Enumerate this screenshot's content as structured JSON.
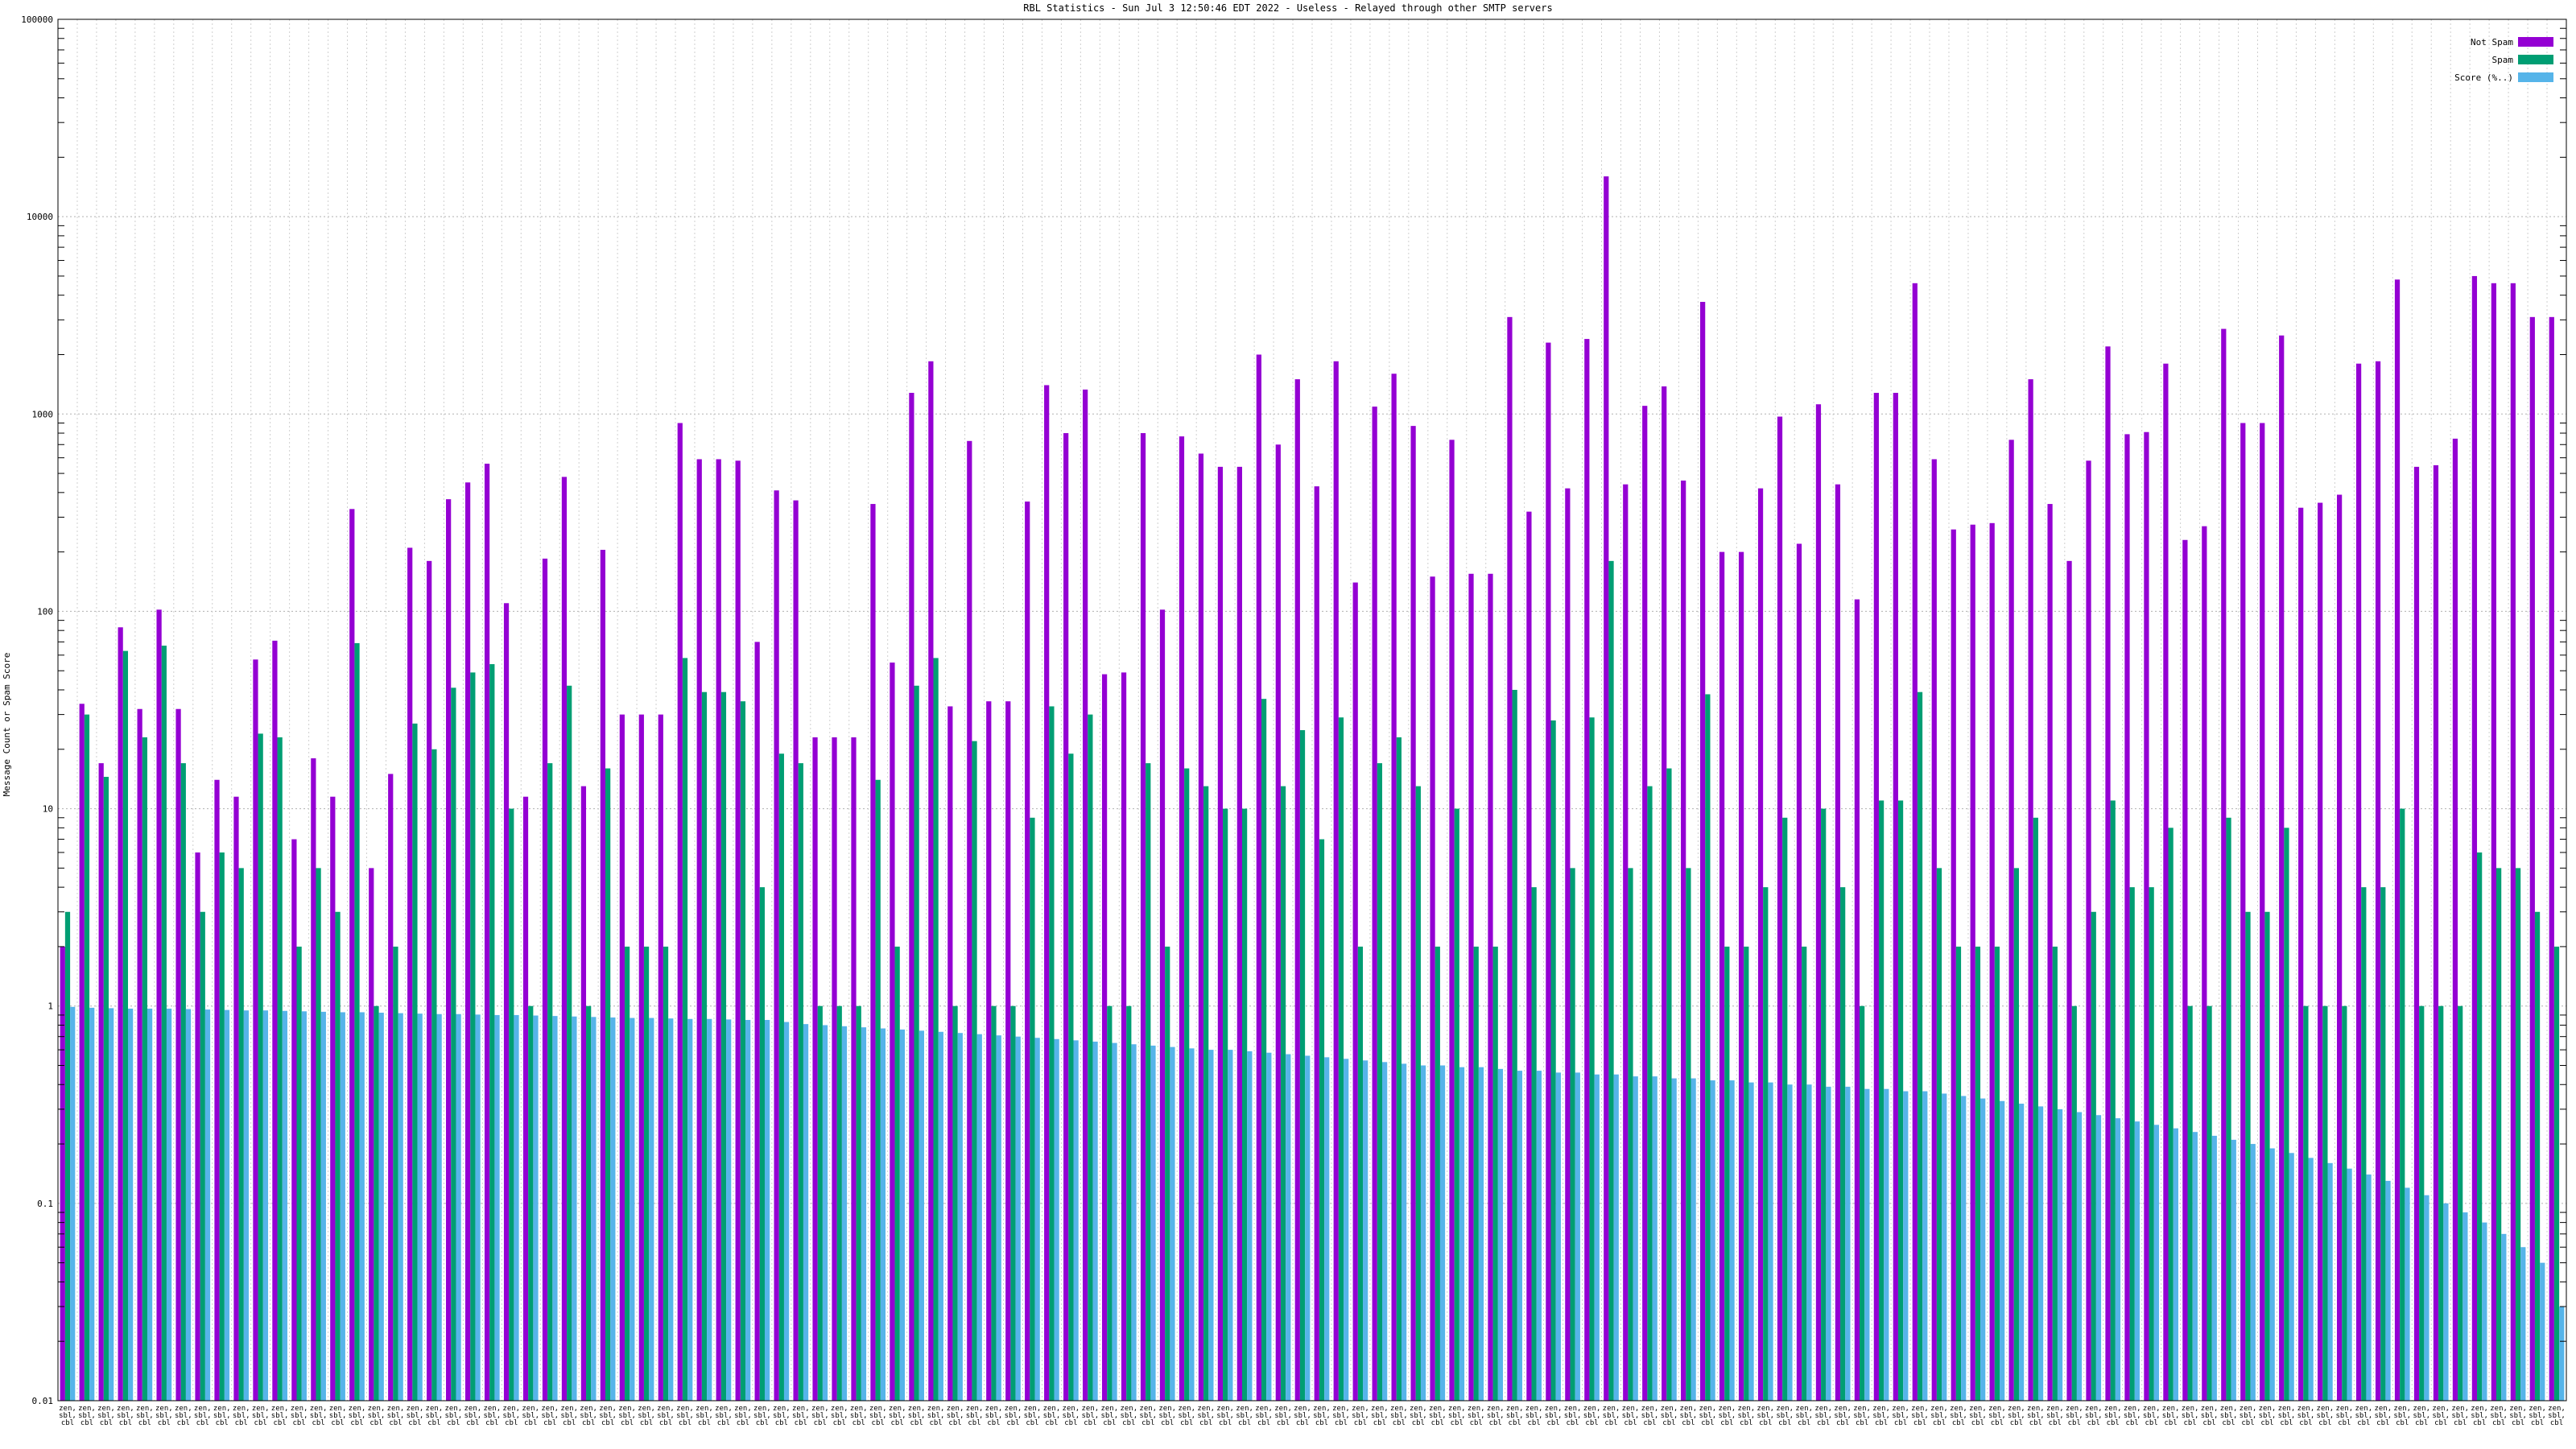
{
  "chart_data": {
    "type": "bar",
    "title": "RBL Statistics - Sun Jul  3 12:50:46 EDT 2022 - Useless - Relayed through other SMTP servers",
    "ylabel": "Message Count or Spam Score",
    "yscale": "log",
    "ylim": [
      0.01,
      100000
    ],
    "y_ticks": [
      {
        "value": 0.01,
        "label": "0.01"
      },
      {
        "value": 0.1,
        "label": "0.1"
      },
      {
        "value": 1,
        "label": "1"
      },
      {
        "value": 10,
        "label": "10"
      },
      {
        "value": 100,
        "label": "100"
      },
      {
        "value": 1000,
        "label": "1000"
      },
      {
        "value": 10000,
        "label": "10000"
      },
      {
        "value": 100000,
        "label": "100000"
      }
    ],
    "grid": true,
    "legend_position": "top-right",
    "colors": {
      "not_spam": "#9400d3",
      "spam": "#009e73",
      "score": "#56b4e9"
    },
    "series": [
      {
        "name": "Not Spam",
        "values": [
          2,
          34,
          17,
          83,
          32,
          102,
          32,
          6,
          14,
          11.5,
          57,
          71,
          7,
          18,
          11.5,
          330,
          5,
          15,
          210,
          180,
          370,
          450,
          560,
          110,
          11.5,
          185,
          480,
          13,
          205,
          30,
          30,
          30,
          900,
          590,
          590,
          580,
          70,
          410,
          365,
          23,
          23,
          23,
          350,
          55,
          1280,
          1850,
          33,
          730,
          35,
          35,
          360,
          1400,
          800,
          1330,
          48,
          49,
          800,
          102,
          770,
          630,
          540,
          540,
          2000,
          700,
          1500,
          430,
          1850,
          140,
          1090,
          1600,
          870,
          150,
          740,
          155,
          155,
          3100,
          320,
          2300,
          420,
          2400,
          16000,
          440,
          1100,
          1380,
          460,
          3700,
          200,
          200,
          420,
          970,
          220,
          1120,
          440,
          115,
          1280,
          1280,
          4600,
          590,
          260,
          275,
          280,
          740,
          1500,
          350,
          180,
          580,
          2200,
          790,
          810,
          1800,
          230,
          270,
          2700,
          900,
          900,
          2500,
          335,
          355,
          390,
          1800,
          1850,
          4800,
          540,
          550,
          750,
          5000,
          4600,
          4600,
          3100,
          3100
        ]
      },
      {
        "name": "Spam",
        "values": [
          3,
          30,
          14.5,
          63,
          23,
          67,
          17,
          3,
          6,
          5,
          24,
          23,
          2,
          5,
          3,
          69,
          1,
          2,
          27,
          20,
          41,
          49,
          54,
          10,
          1,
          17,
          42,
          1,
          16,
          2,
          2,
          2,
          58,
          39,
          39,
          35,
          4,
          19,
          17,
          1,
          1,
          1,
          14,
          2,
          42,
          58,
          1,
          22,
          1,
          1,
          9,
          33,
          19,
          30,
          1,
          1,
          17,
          2,
          16,
          13,
          10,
          10,
          36,
          13,
          25,
          7,
          29,
          2,
          17,
          23,
          13,
          2,
          10,
          2,
          2,
          40,
          4,
          28,
          5,
          29,
          180,
          5,
          13,
          16,
          5,
          38,
          2,
          2,
          4,
          9,
          2,
          10,
          4,
          1,
          11,
          11,
          39,
          5,
          2,
          2,
          2,
          5,
          9,
          2,
          1,
          3,
          11,
          4,
          4,
          8,
          1,
          1,
          9,
          3,
          3,
          8,
          1,
          1,
          1,
          4,
          4,
          10,
          1,
          1,
          1,
          6,
          5,
          5,
          3,
          2
        ]
      },
      {
        "name": "Score (%..)",
        "values": [
          0.99,
          0.98,
          0.975,
          0.97,
          0.97,
          0.97,
          0.965,
          0.96,
          0.955,
          0.95,
          0.95,
          0.945,
          0.94,
          0.935,
          0.93,
          0.93,
          0.925,
          0.92,
          0.915,
          0.91,
          0.91,
          0.905,
          0.9,
          0.9,
          0.895,
          0.89,
          0.885,
          0.88,
          0.875,
          0.87,
          0.87,
          0.865,
          0.86,
          0.86,
          0.855,
          0.85,
          0.85,
          0.83,
          0.81,
          0.8,
          0.79,
          0.78,
          0.77,
          0.76,
          0.75,
          0.74,
          0.73,
          0.72,
          0.71,
          0.7,
          0.69,
          0.68,
          0.67,
          0.66,
          0.65,
          0.64,
          0.63,
          0.62,
          0.61,
          0.6,
          0.6,
          0.59,
          0.58,
          0.57,
          0.56,
          0.55,
          0.54,
          0.53,
          0.52,
          0.51,
          0.5,
          0.5,
          0.49,
          0.49,
          0.48,
          0.47,
          0.47,
          0.46,
          0.46,
          0.45,
          0.45,
          0.44,
          0.44,
          0.43,
          0.43,
          0.42,
          0.42,
          0.41,
          0.41,
          0.4,
          0.4,
          0.39,
          0.39,
          0.38,
          0.38,
          0.37,
          0.37,
          0.36,
          0.35,
          0.34,
          0.33,
          0.32,
          0.31,
          0.3,
          0.29,
          0.28,
          0.27,
          0.26,
          0.25,
          0.24,
          0.23,
          0.22,
          0.21,
          0.2,
          0.19,
          0.18,
          0.17,
          0.16,
          0.15,
          0.14,
          0.13,
          0.12,
          0.11,
          0.1,
          0.09,
          0.08,
          0.07,
          0.06,
          0.05,
          0.03
        ]
      }
    ],
    "categories": [
      [
        "zen,",
        "sbl,",
        "cbl"
      ],
      [
        "zen,",
        "sbl,",
        "cbl"
      ],
      [
        "zen,",
        "sbl,",
        "cbl"
      ],
      [
        "zen,",
        "sbl,",
        "cbl"
      ],
      [
        "zen,",
        "sbl,",
        "cbl"
      ],
      [
        "zen,",
        "sbl,",
        "cbl"
      ],
      [
        "zen,",
        "sbl,",
        "cbl"
      ],
      [
        "zen,",
        "sbl,",
        "cbl"
      ],
      [
        "zen,",
        "sbl,",
        "cbl"
      ],
      [
        "zen,",
        "sbl,",
        "cbl"
      ],
      [
        "zen,",
        "sbl,",
        "cbl"
      ],
      [
        "zen,",
        "sbl,",
        "cbl"
      ],
      [
        "zen,",
        "sbl,",
        "cbl"
      ],
      [
        "zen,",
        "sbl,",
        "cbl"
      ],
      [
        "zen,",
        "sbl,",
        "cbl"
      ],
      [
        "zen,",
        "sbl,",
        "cbl"
      ],
      [
        "zen,",
        "sbl,",
        "cbl"
      ],
      [
        "zen,",
        "sbl,",
        "cbl"
      ],
      [
        "zen,",
        "sbl,",
        "cbl"
      ],
      [
        "zen,",
        "sbl,",
        "cbl"
      ],
      [
        "zen,",
        "sbl,",
        "cbl"
      ],
      [
        "zen,",
        "sbl,",
        "cbl"
      ],
      [
        "zen,",
        "sbl,",
        "cbl"
      ],
      [
        "zen,",
        "sbl,",
        "cbl"
      ],
      [
        "zen,",
        "sbl,",
        "cbl"
      ],
      [
        "zen,",
        "sbl,",
        "cbl"
      ],
      [
        "zen,",
        "sbl,",
        "cbl"
      ],
      [
        "zen,",
        "sbl,",
        "cbl"
      ],
      [
        "zen,",
        "sbl,",
        "cbl"
      ],
      [
        "zen,",
        "sbl,",
        "cbl"
      ],
      [
        "zen,",
        "sbl,",
        "cbl"
      ],
      [
        "zen,",
        "sbl,",
        "cbl"
      ],
      [
        "zen,",
        "sbl,",
        "cbl"
      ],
      [
        "zen,",
        "sbl,",
        "cbl"
      ],
      [
        "zen,",
        "sbl,",
        "cbl"
      ],
      [
        "zen,",
        "sbl,",
        "cbl"
      ],
      [
        "zen,",
        "sbl,",
        "cbl"
      ],
      [
        "zen,",
        "sbl,",
        "cbl"
      ],
      [
        "zen,",
        "sbl,",
        "cbl"
      ],
      [
        "zen,",
        "sbl,",
        "cbl"
      ],
      [
        "zen,",
        "sbl,",
        "cbl"
      ],
      [
        "zen,",
        "sbl,",
        "cbl"
      ],
      [
        "zen,",
        "sbl,",
        "cbl"
      ],
      [
        "zen,",
        "sbl,",
        "cbl"
      ],
      [
        "zen,",
        "sbl,",
        "cbl"
      ],
      [
        "zen,",
        "sbl,",
        "cbl"
      ],
      [
        "zen,",
        "sbl,",
        "cbl"
      ],
      [
        "zen,",
        "sbl,",
        "cbl"
      ],
      [
        "zen,",
        "sbl,",
        "cbl"
      ],
      [
        "zen,",
        "sbl,",
        "cbl"
      ],
      [
        "zen,",
        "sbl,",
        "cbl"
      ],
      [
        "zen,",
        "sbl,",
        "cbl"
      ],
      [
        "zen,",
        "sbl,",
        "cbl"
      ],
      [
        "zen,",
        "sbl,",
        "cbl"
      ],
      [
        "zen,",
        "sbl,",
        "cbl"
      ],
      [
        "zen,",
        "sbl,",
        "cbl"
      ],
      [
        "zen,",
        "sbl,",
        "cbl"
      ],
      [
        "zen,",
        "sbl,",
        "cbl"
      ],
      [
        "zen,",
        "sbl,",
        "cbl"
      ],
      [
        "zen,",
        "sbl,",
        "cbl"
      ],
      [
        "zen,",
        "sbl,",
        "cbl"
      ],
      [
        "zen,",
        "sbl,",
        "cbl"
      ],
      [
        "zen,",
        "sbl,",
        "cbl"
      ],
      [
        "zen,",
        "sbl,",
        "cbl"
      ],
      [
        "zen,",
        "sbl,",
        "cbl"
      ],
      [
        "zen,",
        "sbl,",
        "cbl"
      ],
      [
        "zen,",
        "sbl,",
        "cbl"
      ],
      [
        "zen,",
        "sbl,",
        "cbl"
      ],
      [
        "zen,",
        "sbl,",
        "cbl"
      ],
      [
        "zen,",
        "sbl,",
        "cbl"
      ],
      [
        "zen,",
        "sbl,",
        "cbl"
      ],
      [
        "zen,",
        "sbl,",
        "cbl"
      ],
      [
        "zen,",
        "sbl,",
        "cbl"
      ],
      [
        "zen,",
        "sbl,",
        "cbl"
      ],
      [
        "zen,",
        "sbl,",
        "cbl"
      ],
      [
        "zen,",
        "sbl,",
        "cbl"
      ],
      [
        "zen,",
        "sbl,",
        "cbl"
      ],
      [
        "zen,",
        "sbl,",
        "cbl"
      ],
      [
        "zen,",
        "sbl,",
        "cbl"
      ],
      [
        "zen,",
        "sbl,",
        "cbl"
      ],
      [
        "zen,",
        "sbl,",
        "cbl"
      ],
      [
        "zen,",
        "sbl,",
        "cbl"
      ],
      [
        "zen,",
        "sbl,",
        "cbl"
      ],
      [
        "zen,",
        "sbl,",
        "cbl"
      ],
      [
        "zen,",
        "sbl,",
        "cbl"
      ],
      [
        "zen,",
        "sbl,",
        "cbl"
      ],
      [
        "zen,",
        "sbl,",
        "cbl"
      ],
      [
        "zen,",
        "sbl,",
        "cbl"
      ],
      [
        "zen,",
        "sbl,",
        "cbl"
      ],
      [
        "zen,",
        "sbl,",
        "cbl"
      ],
      [
        "zen,",
        "sbl,",
        "cbl"
      ],
      [
        "zen,",
        "sbl,",
        "cbl"
      ],
      [
        "zen,",
        "sbl,",
        "cbl"
      ],
      [
        "zen,",
        "sbl,",
        "cbl"
      ],
      [
        "zen,",
        "sbl,",
        "cbl"
      ],
      [
        "zen,",
        "sbl,",
        "cbl"
      ],
      [
        "zen,",
        "sbl,",
        "cbl"
      ],
      [
        "zen,",
        "sbl,",
        "cbl"
      ],
      [
        "zen,",
        "sbl,",
        "cbl"
      ],
      [
        "zen,",
        "sbl,",
        "cbl"
      ],
      [
        "zen,",
        "sbl,",
        "cbl"
      ],
      [
        "zen,",
        "sbl,",
        "cbl"
      ],
      [
        "zen,",
        "sbl,",
        "cbl"
      ],
      [
        "zen,",
        "sbl,",
        "cbl"
      ],
      [
        "zen,",
        "sbl,",
        "cbl"
      ],
      [
        "zen,",
        "sbl,",
        "cbl"
      ],
      [
        "zen,",
        "sbl,",
        "cbl"
      ],
      [
        "zen,",
        "sbl,",
        "cbl"
      ],
      [
        "zen,",
        "sbl,",
        "cbl"
      ],
      [
        "zen,",
        "sbl,",
        "cbl"
      ],
      [
        "zen,",
        "sbl,",
        "cbl"
      ],
      [
        "zen,",
        "sbl,",
        "cbl"
      ],
      [
        "zen,",
        "sbl,",
        "cbl"
      ],
      [
        "zen,",
        "sbl,",
        "cbl"
      ],
      [
        "zen,",
        "sbl,",
        "cbl"
      ],
      [
        "zen,",
        "sbl,",
        "cbl"
      ],
      [
        "zen,",
        "sbl,",
        "cbl"
      ],
      [
        "zen,",
        "sbl,",
        "cbl"
      ],
      [
        "zen,",
        "sbl,",
        "cbl"
      ],
      [
        "zen,",
        "sbl,",
        "cbl"
      ],
      [
        "zen,",
        "sbl,",
        "cbl"
      ],
      [
        "zen,",
        "sbl,",
        "cbl"
      ],
      [
        "zen,",
        "sbl,",
        "cbl"
      ],
      [
        "zen,",
        "sbl,",
        "cbl"
      ],
      [
        "zen,",
        "sbl,",
        "cbl"
      ],
      [
        "zen,",
        "sbl,",
        "cbl"
      ],
      [
        "zen,",
        "sbl,",
        "cbl"
      ],
      [
        "zen,",
        "sbl,",
        "cbl"
      ],
      [
        "zen,",
        "sbl,",
        "cbl"
      ],
      [
        "zen,",
        "sbl,",
        "cbl"
      ]
    ]
  }
}
